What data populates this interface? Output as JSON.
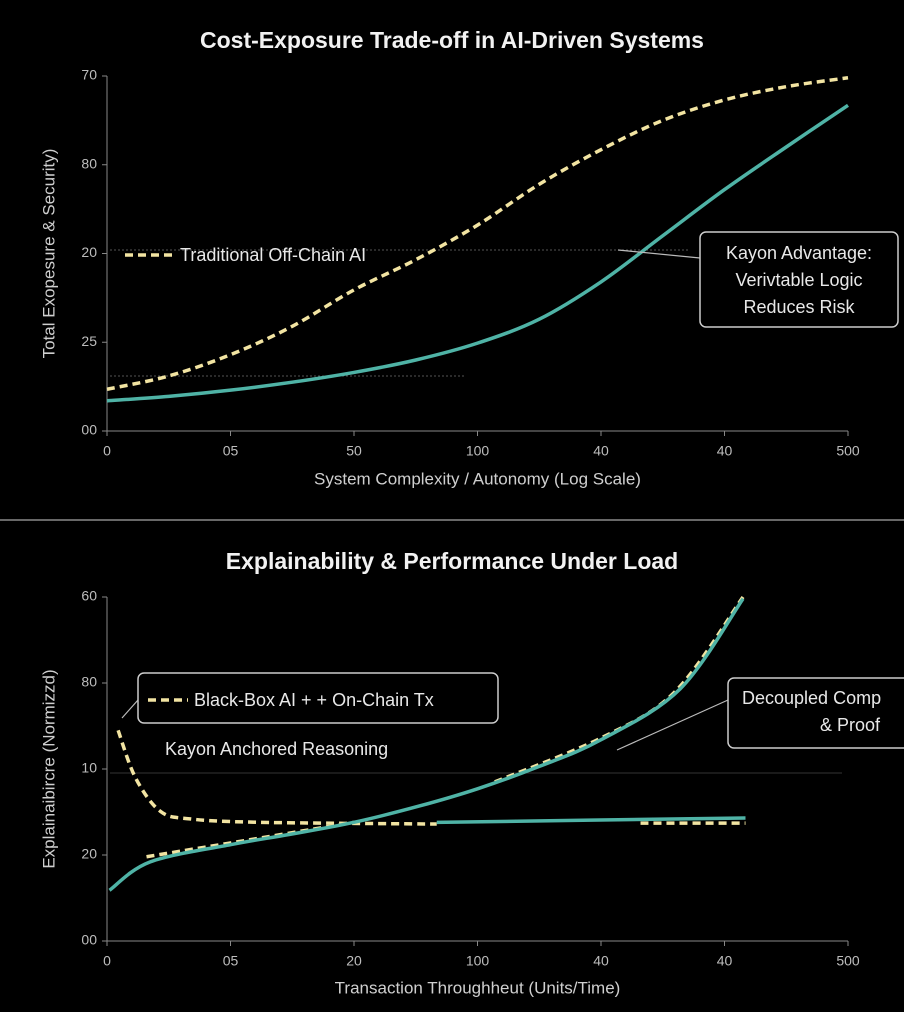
{
  "chart_data": [
    {
      "type": "line",
      "title": "Cost-Exposure Trade-off in AI-Driven Systems",
      "xlabel": "System Complexity / Autonomy (Log Scale)",
      "ylabel": "Total Exopesure & Security)",
      "xlim": [
        0,
        6
      ],
      "xticks": [
        {
          "value": 0,
          "label": "0"
        },
        {
          "value": 1,
          "label": "05"
        },
        {
          "value": 2,
          "label": "50"
        },
        {
          "value": 3,
          "label": "100"
        },
        {
          "value": 4,
          "label": "40"
        },
        {
          "value": 5,
          "label": "40"
        },
        {
          "value": 6,
          "label": "500"
        }
      ],
      "ylim": [
        0,
        4
      ],
      "yticks": [
        {
          "value": 0,
          "label": "00"
        },
        {
          "value": 1,
          "label": "25"
        },
        {
          "value": 2,
          "label": "20"
        },
        {
          "value": 3,
          "label": "80"
        },
        {
          "value": 4,
          "label": "70"
        }
      ],
      "annotation": [
        "Kayon Advantage:",
        "Verivtable Logic",
        "Reduces Risk"
      ],
      "series": [
        {
          "name": "Traditional Off-Chain AI",
          "color": "#f2e4a2",
          "dashed": true,
          "x": [
            0,
            0.5,
            1,
            1.5,
            2,
            2.5,
            3,
            3.5,
            4,
            4.5,
            5,
            5.5,
            6
          ],
          "values": [
            0.47,
            0.62,
            0.86,
            1.18,
            1.59,
            1.93,
            2.32,
            2.78,
            3.17,
            3.5,
            3.73,
            3.88,
            3.98
          ]
        },
        {
          "color": "#4fb3a6",
          "dashed": false,
          "x": [
            0,
            0.5,
            1,
            1.5,
            2,
            2.5,
            3,
            3.5,
            4,
            4.5,
            5,
            5.5,
            6
          ],
          "values": [
            0.34,
            0.39,
            0.46,
            0.55,
            0.66,
            0.8,
            0.99,
            1.26,
            1.68,
            2.2,
            2.72,
            3.2,
            3.67
          ]
        }
      ]
    },
    {
      "type": "line",
      "title": "Explainability & Performance Under Load",
      "xlabel": "Transaction Throughheut (Units/Time)",
      "ylabel": "Explainaibircre (Normizzd)",
      "xlim": [
        0,
        6
      ],
      "xticks": [
        {
          "value": 0,
          "label": "0"
        },
        {
          "value": 1,
          "label": "05"
        },
        {
          "value": 2,
          "label": "20"
        },
        {
          "value": 3,
          "label": "100"
        },
        {
          "value": 4,
          "label": "40"
        },
        {
          "value": 5,
          "label": "40"
        },
        {
          "value": 6,
          "label": "500"
        }
      ],
      "ylim": [
        0,
        4
      ],
      "yticks": [
        {
          "value": 0,
          "label": "00"
        },
        {
          "value": 1,
          "label": "20"
        },
        {
          "value": 2,
          "label": "10"
        },
        {
          "value": 3,
          "label": "80"
        },
        {
          "value": 4,
          "label": "60"
        }
      ],
      "annotation": [
        "Decoupled Comp",
        "& Proof"
      ],
      "series": [
        {
          "name": "Black-Box AI + + On-Chain Tx",
          "color": "#f2e4a2",
          "dashed": true,
          "x": [
            0.09,
            0.23,
            0.43,
            0.67,
            1.24,
            2.67,
            null,
            0.32,
            1.0,
            2.0,
            null,
            3.14,
            4.0,
            4.6,
            5.15,
            null,
            4.32,
            5.17
          ],
          "values": [
            2.45,
            1.9,
            1.51,
            1.42,
            1.38,
            1.36,
            null,
            0.98,
            1.14,
            1.38,
            null,
            1.85,
            2.36,
            2.9,
            4.0,
            null,
            1.37,
            1.37
          ]
        },
        {
          "name": "Kayon Anchored Reasoning",
          "color": "#4fb3a6",
          "dashed": false,
          "x": [
            0.02,
            0.35,
            1.0,
            1.48,
            2.0,
            2.53,
            3.0,
            3.5,
            4.0,
            4.64,
            5.15,
            null,
            2.67,
            5.17
          ],
          "values": [
            0.59,
            0.92,
            1.12,
            1.24,
            1.38,
            1.57,
            1.77,
            2.03,
            2.34,
            2.93,
            3.98,
            null,
            1.38,
            1.43
          ]
        }
      ]
    }
  ]
}
